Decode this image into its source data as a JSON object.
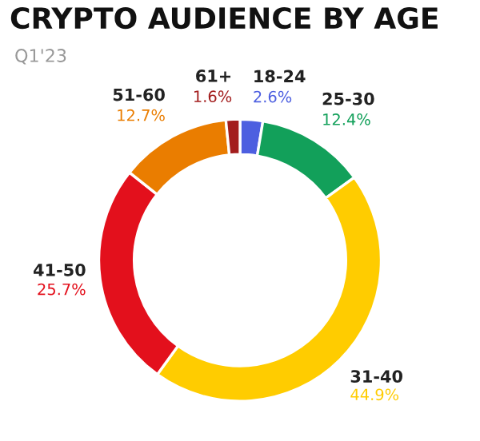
{
  "chart_data": {
    "type": "donut",
    "title": "CRYPTO AUDIENCE BY AGE",
    "subtitle": "Q1'23",
    "categories": [
      "18-24",
      "25-30",
      "31-40",
      "41-50",
      "51-60",
      "61+"
    ],
    "values": [
      2.6,
      12.4,
      44.9,
      25.7,
      12.7,
      1.6
    ],
    "colors": [
      "#4d5fe0",
      "#12a05a",
      "#ffcc00",
      "#e3101c",
      "#ea7d00",
      "#a31d1d"
    ],
    "value_labels": [
      "2.6%",
      "12.4%",
      "44.9%",
      "25.7%",
      "12.7%",
      "1.6%"
    ],
    "legend": false
  }
}
